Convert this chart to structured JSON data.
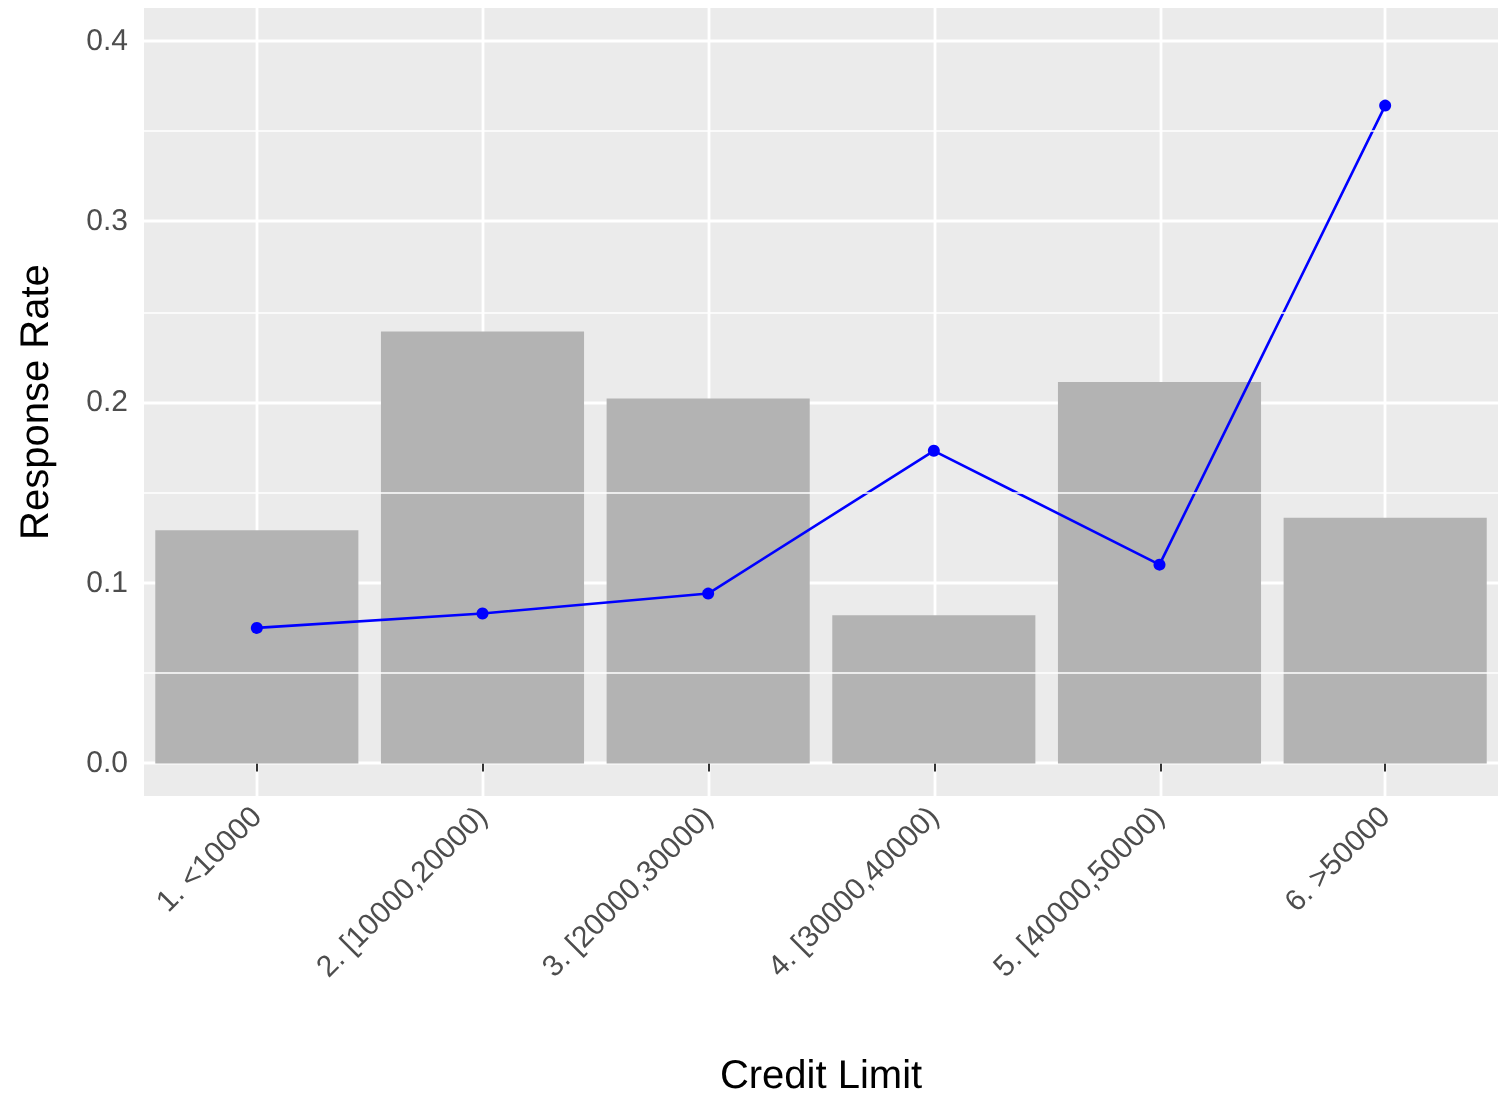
{
  "chart_data": {
    "type": "bar",
    "xlabel": "Credit Limit",
    "ylabel": "Response Rate",
    "categories": [
      "1. <10000",
      "2. [10000,20000)",
      "3. [20000,30000)",
      "4. [30000,40000)",
      "5. [40000,50000)",
      "6. >50000"
    ],
    "series": [
      {
        "color": "#b3b3b3",
        "values": [
          0.129,
          0.239,
          0.202,
          0.082,
          0.211,
          0.136
        ]
      },
      {
        "type": "line",
        "color": "#0000ff",
        "values": [
          0.075,
          0.083,
          0.094,
          0.173,
          0.11,
          0.364
        ]
      }
    ],
    "ylim": [
      -0.018,
      0.418
    ],
    "yticks": [
      {
        "value": 0,
        "label": "0.0"
      },
      {
        "value": 0.1,
        "label": "0.1"
      },
      {
        "value": 0.2,
        "label": "0.2"
      },
      {
        "value": 0.3,
        "label": "0.3"
      },
      {
        "value": 0.4,
        "label": "0.4"
      }
    ],
    "grid": true,
    "marker": "circle",
    "line_style": "solid"
  }
}
